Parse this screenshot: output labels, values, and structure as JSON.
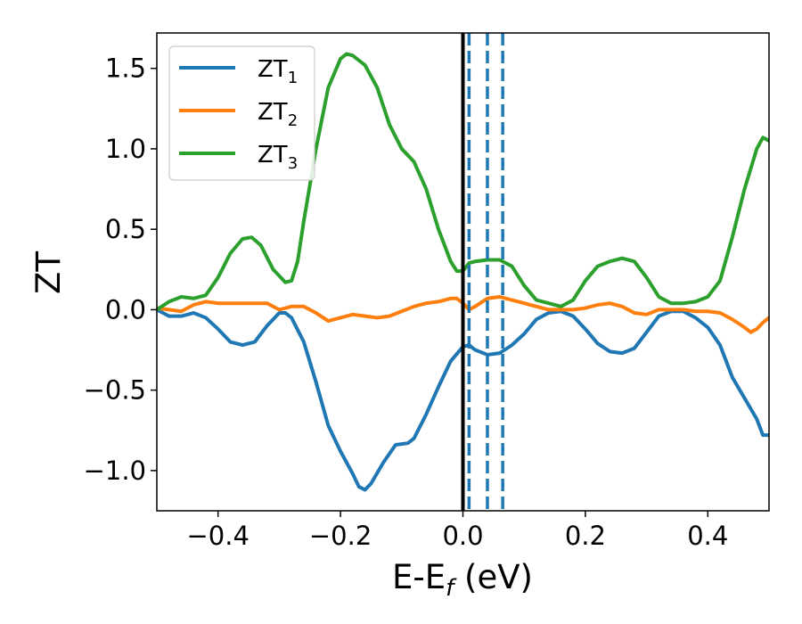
{
  "chart_data": {
    "type": "line",
    "xlabel": "E-E",
    "xlabel_sub": "f",
    "xlabel_unit": " (eV)",
    "ylabel": "ZT",
    "xlim": [
      -0.5,
      0.5
    ],
    "ylim": [
      -1.25,
      1.72
    ],
    "xticks": [
      -0.4,
      -0.2,
      0.0,
      0.2,
      0.4
    ],
    "xtick_labels": [
      "−0.4",
      "−0.2",
      "0.0",
      "0.2",
      "0.4"
    ],
    "yticks": [
      -1.0,
      -0.5,
      0.0,
      0.5,
      1.0,
      1.5
    ],
    "ytick_labels": [
      "−1.0",
      "−0.5",
      "0.0",
      "0.5",
      "1.0",
      "1.5"
    ],
    "grid": false,
    "legend_position": "top-left",
    "vlines": [
      {
        "x": 0.0,
        "style": "solid",
        "color": "#000000"
      },
      {
        "x": 0.01,
        "style": "dashed",
        "color": "#1f77b4"
      },
      {
        "x": 0.04,
        "style": "dashed",
        "color": "#1f77b4"
      },
      {
        "x": 0.065,
        "style": "dashed",
        "color": "#1f77b4"
      }
    ],
    "series": [
      {
        "name": "ZT",
        "name_sub": "1",
        "color": "#1f77b4",
        "points": [
          [
            -0.5,
            0.0
          ],
          [
            -0.48,
            -0.04
          ],
          [
            -0.46,
            -0.04
          ],
          [
            -0.44,
            -0.02
          ],
          [
            -0.42,
            -0.05
          ],
          [
            -0.4,
            -0.12
          ],
          [
            -0.38,
            -0.2
          ],
          [
            -0.36,
            -0.22
          ],
          [
            -0.34,
            -0.2
          ],
          [
            -0.32,
            -0.1
          ],
          [
            -0.3,
            -0.02
          ],
          [
            -0.29,
            -0.02
          ],
          [
            -0.28,
            -0.05
          ],
          [
            -0.26,
            -0.2
          ],
          [
            -0.24,
            -0.45
          ],
          [
            -0.22,
            -0.72
          ],
          [
            -0.2,
            -0.88
          ],
          [
            -0.18,
            -1.02
          ],
          [
            -0.17,
            -1.1
          ],
          [
            -0.16,
            -1.12
          ],
          [
            -0.15,
            -1.08
          ],
          [
            -0.13,
            -0.95
          ],
          [
            -0.11,
            -0.84
          ],
          [
            -0.09,
            -0.83
          ],
          [
            -0.08,
            -0.8
          ],
          [
            -0.06,
            -0.65
          ],
          [
            -0.04,
            -0.48
          ],
          [
            -0.02,
            -0.32
          ],
          [
            0.0,
            -0.23
          ],
          [
            0.01,
            -0.22
          ],
          [
            0.02,
            -0.25
          ],
          [
            0.04,
            -0.28
          ],
          [
            0.06,
            -0.27
          ],
          [
            0.08,
            -0.22
          ],
          [
            0.1,
            -0.15
          ],
          [
            0.12,
            -0.06
          ],
          [
            0.14,
            -0.02
          ],
          [
            0.16,
            -0.01
          ],
          [
            0.18,
            -0.04
          ],
          [
            0.2,
            -0.12
          ],
          [
            0.22,
            -0.21
          ],
          [
            0.24,
            -0.26
          ],
          [
            0.26,
            -0.27
          ],
          [
            0.28,
            -0.24
          ],
          [
            0.3,
            -0.14
          ],
          [
            0.32,
            -0.04
          ],
          [
            0.34,
            -0.01
          ],
          [
            0.36,
            -0.01
          ],
          [
            0.38,
            -0.05
          ],
          [
            0.4,
            -0.11
          ],
          [
            0.42,
            -0.22
          ],
          [
            0.44,
            -0.42
          ],
          [
            0.46,
            -0.55
          ],
          [
            0.48,
            -0.68
          ],
          [
            0.49,
            -0.78
          ],
          [
            0.5,
            -0.78
          ]
        ]
      },
      {
        "name": "ZT",
        "name_sub": "2",
        "color": "#ff7f0e",
        "points": [
          [
            -0.5,
            0.01
          ],
          [
            -0.48,
            0.0
          ],
          [
            -0.46,
            -0.01
          ],
          [
            -0.44,
            0.03
          ],
          [
            -0.42,
            0.05
          ],
          [
            -0.4,
            0.04
          ],
          [
            -0.36,
            0.04
          ],
          [
            -0.32,
            0.04
          ],
          [
            -0.3,
            0.0
          ],
          [
            -0.28,
            0.02
          ],
          [
            -0.26,
            0.02
          ],
          [
            -0.24,
            -0.02
          ],
          [
            -0.22,
            -0.07
          ],
          [
            -0.2,
            -0.05
          ],
          [
            -0.18,
            -0.03
          ],
          [
            -0.16,
            -0.04
          ],
          [
            -0.14,
            -0.05
          ],
          [
            -0.12,
            -0.04
          ],
          [
            -0.1,
            -0.01
          ],
          [
            -0.08,
            0.02
          ],
          [
            -0.06,
            0.04
          ],
          [
            -0.04,
            0.05
          ],
          [
            -0.02,
            0.07
          ],
          [
            -0.01,
            0.07
          ],
          [
            0.0,
            0.04
          ],
          [
            0.01,
            0.0
          ],
          [
            0.02,
            0.02
          ],
          [
            0.04,
            0.07
          ],
          [
            0.06,
            0.08
          ],
          [
            0.08,
            0.06
          ],
          [
            0.1,
            0.04
          ],
          [
            0.12,
            0.02
          ],
          [
            0.14,
            0.0
          ],
          [
            0.16,
            0.0
          ],
          [
            0.18,
            0.0
          ],
          [
            0.2,
            0.01
          ],
          [
            0.22,
            0.03
          ],
          [
            0.24,
            0.04
          ],
          [
            0.26,
            0.02
          ],
          [
            0.28,
            -0.02
          ],
          [
            0.3,
            -0.03
          ],
          [
            0.32,
            0.0
          ],
          [
            0.34,
            0.0
          ],
          [
            0.36,
            0.0
          ],
          [
            0.38,
            -0.01
          ],
          [
            0.4,
            -0.01
          ],
          [
            0.42,
            -0.02
          ],
          [
            0.44,
            -0.06
          ],
          [
            0.46,
            -0.11
          ],
          [
            0.47,
            -0.14
          ],
          [
            0.48,
            -0.12
          ],
          [
            0.49,
            -0.08
          ],
          [
            0.5,
            -0.05
          ]
        ]
      },
      {
        "name": "ZT",
        "name_sub": "3",
        "color": "#2ca02c",
        "points": [
          [
            -0.5,
            0.0
          ],
          [
            -0.48,
            0.05
          ],
          [
            -0.46,
            0.08
          ],
          [
            -0.44,
            0.07
          ],
          [
            -0.42,
            0.09
          ],
          [
            -0.4,
            0.2
          ],
          [
            -0.38,
            0.35
          ],
          [
            -0.36,
            0.44
          ],
          [
            -0.345,
            0.45
          ],
          [
            -0.33,
            0.4
          ],
          [
            -0.31,
            0.25
          ],
          [
            -0.29,
            0.17
          ],
          [
            -0.28,
            0.18
          ],
          [
            -0.27,
            0.3
          ],
          [
            -0.26,
            0.55
          ],
          [
            -0.24,
            1.0
          ],
          [
            -0.22,
            1.38
          ],
          [
            -0.2,
            1.56
          ],
          [
            -0.19,
            1.59
          ],
          [
            -0.18,
            1.58
          ],
          [
            -0.16,
            1.52
          ],
          [
            -0.14,
            1.38
          ],
          [
            -0.12,
            1.15
          ],
          [
            -0.1,
            1.0
          ],
          [
            -0.08,
            0.92
          ],
          [
            -0.06,
            0.75
          ],
          [
            -0.04,
            0.5
          ],
          [
            -0.02,
            0.3
          ],
          [
            -0.01,
            0.24
          ],
          [
            0.0,
            0.24
          ],
          [
            0.01,
            0.29
          ],
          [
            0.02,
            0.3
          ],
          [
            0.04,
            0.31
          ],
          [
            0.06,
            0.31
          ],
          [
            0.08,
            0.27
          ],
          [
            0.1,
            0.15
          ],
          [
            0.12,
            0.06
          ],
          [
            0.14,
            0.04
          ],
          [
            0.16,
            0.02
          ],
          [
            0.18,
            0.06
          ],
          [
            0.2,
            0.18
          ],
          [
            0.22,
            0.27
          ],
          [
            0.24,
            0.3
          ],
          [
            0.26,
            0.32
          ],
          [
            0.28,
            0.3
          ],
          [
            0.3,
            0.2
          ],
          [
            0.32,
            0.08
          ],
          [
            0.34,
            0.04
          ],
          [
            0.36,
            0.04
          ],
          [
            0.38,
            0.05
          ],
          [
            0.4,
            0.08
          ],
          [
            0.42,
            0.18
          ],
          [
            0.44,
            0.45
          ],
          [
            0.46,
            0.75
          ],
          [
            0.48,
            1.0
          ],
          [
            0.49,
            1.07
          ],
          [
            0.5,
            1.05
          ]
        ]
      }
    ]
  }
}
